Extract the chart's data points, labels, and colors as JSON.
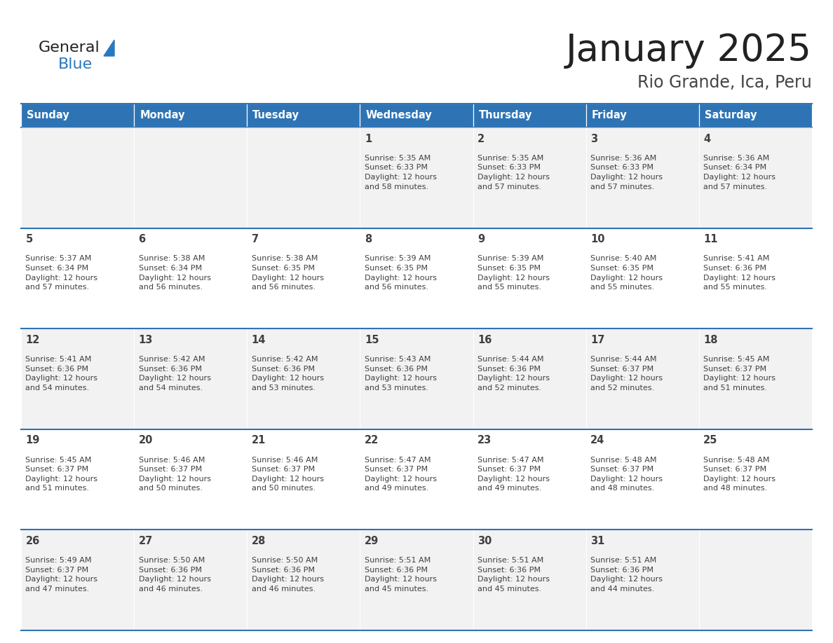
{
  "title": "January 2025",
  "subtitle": "Rio Grande, Ica, Peru",
  "days_of_week": [
    "Sunday",
    "Monday",
    "Tuesday",
    "Wednesday",
    "Thursday",
    "Friday",
    "Saturday"
  ],
  "header_bg": "#2E74B5",
  "header_text": "#FFFFFF",
  "row_bg_odd": "#F2F2F2",
  "row_bg_even": "#FFFFFF",
  "cell_text_color": "#404040",
  "border_color": "#2E74B5",
  "logo_text_color": "#222222",
  "logo_blue_color": "#2979BE",
  "title_color": "#222222",
  "subtitle_color": "#444444",
  "calendar": [
    [
      null,
      null,
      null,
      {
        "day": 1,
        "sunrise": "5:35 AM",
        "sunset": "6:33 PM",
        "daylight": "12 hours and 58 minutes."
      },
      {
        "day": 2,
        "sunrise": "5:35 AM",
        "sunset": "6:33 PM",
        "daylight": "12 hours and 57 minutes."
      },
      {
        "day": 3,
        "sunrise": "5:36 AM",
        "sunset": "6:33 PM",
        "daylight": "12 hours and 57 minutes."
      },
      {
        "day": 4,
        "sunrise": "5:36 AM",
        "sunset": "6:34 PM",
        "daylight": "12 hours and 57 minutes."
      }
    ],
    [
      {
        "day": 5,
        "sunrise": "5:37 AM",
        "sunset": "6:34 PM",
        "daylight": "12 hours and 57 minutes."
      },
      {
        "day": 6,
        "sunrise": "5:38 AM",
        "sunset": "6:34 PM",
        "daylight": "12 hours and 56 minutes."
      },
      {
        "day": 7,
        "sunrise": "5:38 AM",
        "sunset": "6:35 PM",
        "daylight": "12 hours and 56 minutes."
      },
      {
        "day": 8,
        "sunrise": "5:39 AM",
        "sunset": "6:35 PM",
        "daylight": "12 hours and 56 minutes."
      },
      {
        "day": 9,
        "sunrise": "5:39 AM",
        "sunset": "6:35 PM",
        "daylight": "12 hours and 55 minutes."
      },
      {
        "day": 10,
        "sunrise": "5:40 AM",
        "sunset": "6:35 PM",
        "daylight": "12 hours and 55 minutes."
      },
      {
        "day": 11,
        "sunrise": "5:41 AM",
        "sunset": "6:36 PM",
        "daylight": "12 hours and 55 minutes."
      }
    ],
    [
      {
        "day": 12,
        "sunrise": "5:41 AM",
        "sunset": "6:36 PM",
        "daylight": "12 hours and 54 minutes."
      },
      {
        "day": 13,
        "sunrise": "5:42 AM",
        "sunset": "6:36 PM",
        "daylight": "12 hours and 54 minutes."
      },
      {
        "day": 14,
        "sunrise": "5:42 AM",
        "sunset": "6:36 PM",
        "daylight": "12 hours and 53 minutes."
      },
      {
        "day": 15,
        "sunrise": "5:43 AM",
        "sunset": "6:36 PM",
        "daylight": "12 hours and 53 minutes."
      },
      {
        "day": 16,
        "sunrise": "5:44 AM",
        "sunset": "6:36 PM",
        "daylight": "12 hours and 52 minutes."
      },
      {
        "day": 17,
        "sunrise": "5:44 AM",
        "sunset": "6:37 PM",
        "daylight": "12 hours and 52 minutes."
      },
      {
        "day": 18,
        "sunrise": "5:45 AM",
        "sunset": "6:37 PM",
        "daylight": "12 hours and 51 minutes."
      }
    ],
    [
      {
        "day": 19,
        "sunrise": "5:45 AM",
        "sunset": "6:37 PM",
        "daylight": "12 hours and 51 minutes."
      },
      {
        "day": 20,
        "sunrise": "5:46 AM",
        "sunset": "6:37 PM",
        "daylight": "12 hours and 50 minutes."
      },
      {
        "day": 21,
        "sunrise": "5:46 AM",
        "sunset": "6:37 PM",
        "daylight": "12 hours and 50 minutes."
      },
      {
        "day": 22,
        "sunrise": "5:47 AM",
        "sunset": "6:37 PM",
        "daylight": "12 hours and 49 minutes."
      },
      {
        "day": 23,
        "sunrise": "5:47 AM",
        "sunset": "6:37 PM",
        "daylight": "12 hours and 49 minutes."
      },
      {
        "day": 24,
        "sunrise": "5:48 AM",
        "sunset": "6:37 PM",
        "daylight": "12 hours and 48 minutes."
      },
      {
        "day": 25,
        "sunrise": "5:48 AM",
        "sunset": "6:37 PM",
        "daylight": "12 hours and 48 minutes."
      }
    ],
    [
      {
        "day": 26,
        "sunrise": "5:49 AM",
        "sunset": "6:37 PM",
        "daylight": "12 hours and 47 minutes."
      },
      {
        "day": 27,
        "sunrise": "5:50 AM",
        "sunset": "6:36 PM",
        "daylight": "12 hours and 46 minutes."
      },
      {
        "day": 28,
        "sunrise": "5:50 AM",
        "sunset": "6:36 PM",
        "daylight": "12 hours and 46 minutes."
      },
      {
        "day": 29,
        "sunrise": "5:51 AM",
        "sunset": "6:36 PM",
        "daylight": "12 hours and 45 minutes."
      },
      {
        "day": 30,
        "sunrise": "5:51 AM",
        "sunset": "6:36 PM",
        "daylight": "12 hours and 45 minutes."
      },
      {
        "day": 31,
        "sunrise": "5:51 AM",
        "sunset": "6:36 PM",
        "daylight": "12 hours and 44 minutes."
      },
      null
    ]
  ]
}
